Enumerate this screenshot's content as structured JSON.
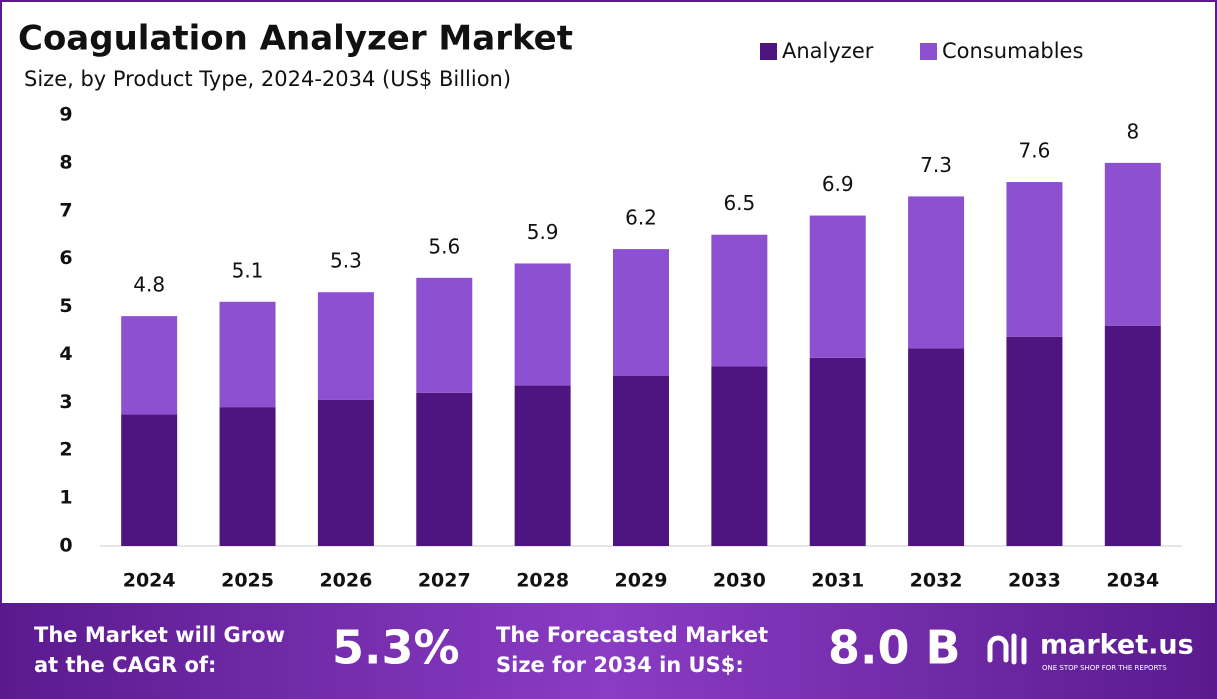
{
  "chart_data": {
    "type": "stacked_bar",
    "title": "Coagulation Analyzer Market",
    "subtitle": "Size, by Product Type, 2024-2034 (US$ Billion)",
    "categories": [
      "2024",
      "2025",
      "2026",
      "2027",
      "2028",
      "2029",
      "2030",
      "2031",
      "2032",
      "2033",
      "2034"
    ],
    "series": [
      {
        "name": "Analyzer",
        "color": "#4e1580",
        "values": [
          2.75,
          2.9,
          3.05,
          3.2,
          3.35,
          3.55,
          3.75,
          3.93,
          4.13,
          4.37,
          4.6
        ]
      },
      {
        "name": "Consumables",
        "color": "#8c50d0",
        "values": [
          2.05,
          2.2,
          2.25,
          2.4,
          2.55,
          2.65,
          2.75,
          2.97,
          3.17,
          3.23,
          3.4
        ]
      }
    ],
    "totals": [
      4.8,
      5.1,
      5.3,
      5.6,
      5.9,
      6.2,
      6.5,
      6.9,
      7.3,
      7.6,
      8.0
    ],
    "ylim": [
      0,
      9
    ],
    "yticks": [
      0,
      1,
      2,
      3,
      4,
      5,
      6,
      7,
      8,
      9
    ],
    "grid": false,
    "legend": "top-right"
  },
  "footer": {
    "cagr_label": [
      "The Market will Grow",
      "at the CAGR of:"
    ],
    "cagr": "5.3%",
    "forecast_label": [
      "The Forecasted Market",
      "Size for 2034 in US$:"
    ],
    "forecast": "8.0 B",
    "brand": "market.us",
    "tagline": "ONE STOP SHOP FOR THE REPORTS"
  }
}
